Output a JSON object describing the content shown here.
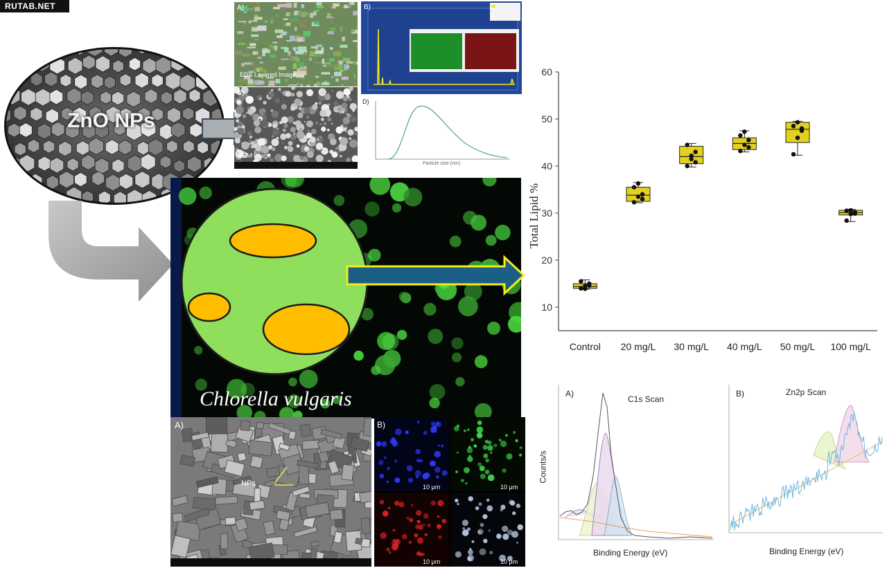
{
  "watermark": "RUTAB.NET",
  "nanoparticle_label": "ZnO NPs",
  "species_label": "Chlorella vulgaris",
  "characterization": {
    "panel_a_label": "A)",
    "panel_a_caption": "EDS Layered Image",
    "panel_b_label": "B)",
    "panel_c_label": "C)",
    "panel_c_caption": "SEM Image",
    "panel_d_label": "D)",
    "panel_d_xlabel": "Particle size (nm)"
  },
  "microscopy": {
    "sem_label": "A)",
    "np_label": "NPs",
    "fluor_label": "B)",
    "scale_bar": "10 μm"
  },
  "lipid_chart": {
    "ylabel": "Total Lipid %",
    "yticks": [
      "10",
      "20",
      "30",
      "40",
      "50",
      "60"
    ]
  },
  "chart_data": {
    "type": "box",
    "ylabel": "Total Lipid %",
    "ylim": [
      5,
      60
    ],
    "categories": [
      "Control",
      "20 mg/L",
      "30 mg/L",
      "40 mg/L",
      "50 mg/L",
      "100 mg/L"
    ],
    "boxes": [
      {
        "min": 13.8,
        "q1": 14.0,
        "median": 14.4,
        "q3": 15.0,
        "max": 15.8
      },
      {
        "min": 32.2,
        "q1": 32.5,
        "median": 33.8,
        "q3": 35.5,
        "max": 36.5
      },
      {
        "min": 39.8,
        "q1": 40.5,
        "median": 42.0,
        "q3": 44.2,
        "max": 44.8
      },
      {
        "min": 43.0,
        "q1": 43.5,
        "median": 44.8,
        "q3": 46.0,
        "max": 47.5
      },
      {
        "min": 42.3,
        "q1": 45.0,
        "median": 47.8,
        "q3": 49.3,
        "max": 49.5
      },
      {
        "min": 28.2,
        "q1": 29.6,
        "median": 30.1,
        "q3": 30.6,
        "max": 30.8
      }
    ],
    "points": [
      [
        14.0,
        14.5,
        15.0,
        15.5,
        13.9,
        14.6
      ],
      [
        32.3,
        33.5,
        34.0,
        35.5,
        36.3,
        33.0
      ],
      [
        40.0,
        41.5,
        43.0,
        44.5,
        42.2,
        40.8
      ],
      [
        43.2,
        44.5,
        45.5,
        46.5,
        47.3,
        44.0
      ],
      [
        42.5,
        46.0,
        47.5,
        48.5,
        49.3,
        48.0
      ],
      [
        28.4,
        29.8,
        30.2,
        30.5,
        30.6,
        29.9
      ]
    ],
    "box_color": "#e3d11f"
  },
  "xps": {
    "c1s_panel": "A)",
    "c1s_title": "C1s Scan",
    "zn_panel": "B)",
    "zn_title": "Zn2p Scan",
    "ylabel": "Counts/s",
    "xlabel": "Binding Energy (eV)"
  },
  "colors": {
    "cell_green": "#90df5c",
    "lipid_orange": "#ffbd00",
    "arrow_blue": "#1c5f86",
    "arrow_yellow": "#f6ee14",
    "grey_arrow": "#9a9a9a"
  }
}
